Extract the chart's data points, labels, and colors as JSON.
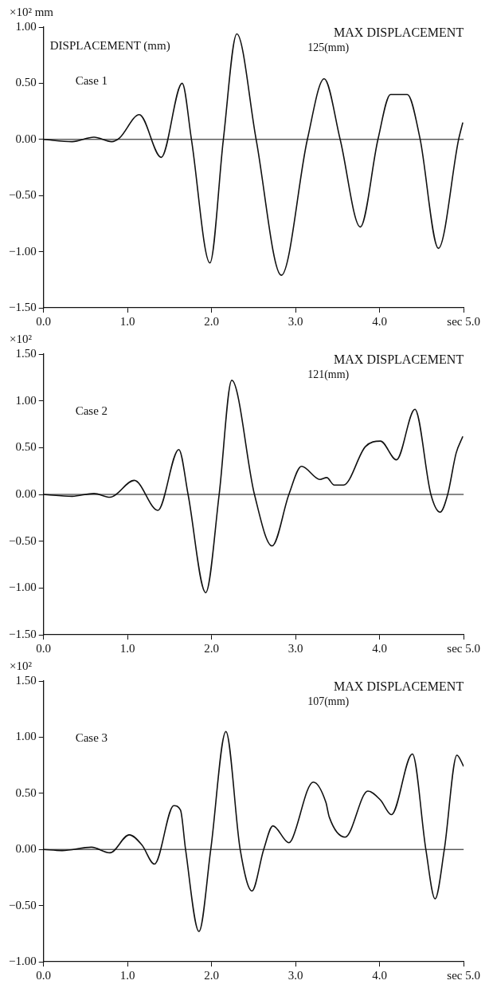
{
  "chart_data": [
    {
      "type": "line",
      "title": "DISPLACEMENT (mm)",
      "subtitle": "Case 1",
      "ylabel": "×10² mm",
      "annotations": [
        "MAX DISPLACEMENT",
        "125(mm)"
      ],
      "marker": "none",
      "grid": false,
      "legend": false,
      "xlim": [
        0,
        5
      ],
      "xticks": [
        {
          "value": 0,
          "label": "0.0"
        },
        {
          "value": 1,
          "label": "1.0"
        },
        {
          "value": 2,
          "label": "2.0"
        },
        {
          "value": 3,
          "label": "3.0"
        },
        {
          "value": 4,
          "label": "4.0"
        },
        {
          "value": 5,
          "label": "sec 5.0"
        }
      ],
      "ylim": [
        -1.5,
        1.0
      ],
      "yticks": [
        {
          "value": -1.5,
          "label": "−1.50"
        },
        {
          "value": -1,
          "label": "−1.00"
        },
        {
          "value": -0.5,
          "label": "−0.50"
        },
        {
          "value": 0,
          "label": "0.00"
        },
        {
          "value": 0.5,
          "label": "0.50"
        },
        {
          "value": 1,
          "label": "1.00"
        }
      ],
      "ref_lines": [
        {
          "axis": "y",
          "value": 0,
          "color": "#111111"
        }
      ],
      "series": [
        {
          "color": "#111111",
          "x": [
            0,
            0.34,
            0.6,
            0.81,
            0.9,
            1.14,
            1.4,
            1.65,
            1.76,
            1.98,
            2.14,
            2.3,
            2.53,
            2.83,
            3.14,
            3.34,
            3.53,
            3.77,
            3.98,
            4.13,
            4.33,
            4.48,
            4.7,
            4.94,
            4.99
          ],
          "values": [
            0,
            -0.02,
            0.02,
            -0.02,
            0.01,
            0.22,
            -0.16,
            0.5,
            0,
            -1.1,
            0,
            0.94,
            0,
            -1.21,
            0,
            0.54,
            0,
            -0.78,
            0,
            0.4,
            0.4,
            0.01,
            -0.97,
            0,
            0.15
          ]
        }
      ]
    },
    {
      "type": "line",
      "subtitle": "Case 2",
      "ylabel": "×10²",
      "annotations": [
        "MAX DISPLACEMENT",
        "121(mm)"
      ],
      "marker": "none",
      "grid": false,
      "legend": false,
      "xlim": [
        0,
        5
      ],
      "xticks": [
        {
          "value": 0,
          "label": "0.0"
        },
        {
          "value": 1,
          "label": "1.0"
        },
        {
          "value": 2,
          "label": "2.0"
        },
        {
          "value": 3,
          "label": "3.0"
        },
        {
          "value": 4,
          "label": "4.0"
        },
        {
          "value": 5,
          "label": "sec 5.0"
        }
      ],
      "ylim": [
        -1.5,
        1.5
      ],
      "yticks": [
        {
          "value": -1.5,
          "label": "−1.50"
        },
        {
          "value": -1,
          "label": "−1.00"
        },
        {
          "value": -0.5,
          "label": "−0.50"
        },
        {
          "value": 0,
          "label": "0.00"
        },
        {
          "value": 0.5,
          "label": "0.50"
        },
        {
          "value": 1,
          "label": "1.00"
        },
        {
          "value": 1.5,
          "label": "1.50"
        }
      ],
      "ref_lines": [
        {
          "axis": "y",
          "value": 0,
          "color": "#111111"
        }
      ],
      "series": [
        {
          "color": "#111111",
          "x": [
            0,
            0.34,
            0.6,
            0.79,
            1.08,
            1.36,
            1.61,
            1.72,
            1.93,
            2.09,
            2.24,
            2.51,
            2.72,
            2.92,
            3.07,
            3.29,
            3.37,
            3.46,
            3.57,
            3.83,
            4.01,
            4.2,
            4.42,
            4.61,
            4.72,
            4.81,
            4.91,
            4.99
          ],
          "values": [
            0,
            -0.02,
            0.01,
            -0.03,
            0.15,
            -0.17,
            0.48,
            0,
            -1.05,
            0,
            1.22,
            0,
            -0.55,
            0,
            0.3,
            0.16,
            0.18,
            0.1,
            0.1,
            0.51,
            0.57,
            0.37,
            0.91,
            0,
            -0.19,
            0,
            0.44,
            0.62
          ]
        }
      ]
    },
    {
      "type": "line",
      "subtitle": "Case 3",
      "ylabel": "×10²",
      "annotations": [
        "MAX DISPLACEMENT",
        "107(mm)"
      ],
      "marker": "none",
      "grid": false,
      "legend": false,
      "xlim": [
        0,
        5
      ],
      "xticks": [
        {
          "value": 0,
          "label": "0.0"
        },
        {
          "value": 1,
          "label": "1.0"
        },
        {
          "value": 2,
          "label": "2.0"
        },
        {
          "value": 3,
          "label": "3.0"
        },
        {
          "value": 4,
          "label": "4.0"
        },
        {
          "value": 5,
          "label": "sec 5.0"
        }
      ],
      "ylim": [
        -1.0,
        1.5
      ],
      "yticks": [
        {
          "value": -1,
          "label": "−1.00"
        },
        {
          "value": -0.5,
          "label": "−0.50"
        },
        {
          "value": 0,
          "label": "0.00"
        },
        {
          "value": 0.5,
          "label": "0.50"
        },
        {
          "value": 1,
          "label": "1.00"
        },
        {
          "value": 1.5,
          "label": "1.50"
        }
      ],
      "ref_lines": [
        {
          "axis": "y",
          "value": 0,
          "color": "#111111"
        }
      ],
      "series": [
        {
          "color": "#111111",
          "x": [
            0,
            0.22,
            0.57,
            0.79,
            1.02,
            1.17,
            1.32,
            1.55,
            1.63,
            1.69,
            1.85,
            1.99,
            2.17,
            2.34,
            2.48,
            2.62,
            2.73,
            2.92,
            2.95,
            3.21,
            3.36,
            3.4,
            3.59,
            3.86,
            4.01,
            4.14,
            4.39,
            4.55,
            4.66,
            4.77,
            4.92,
            5.0
          ],
          "values": [
            0,
            -0.01,
            0.02,
            -0.03,
            0.13,
            0.04,
            -0.13,
            0.39,
            0.35,
            0,
            -0.73,
            0,
            1.05,
            0,
            -0.37,
            0,
            0.21,
            0.06,
            0.08,
            0.6,
            0.42,
            0.29,
            0.11,
            0.52,
            0.44,
            0.31,
            0.85,
            0,
            -0.44,
            0,
            0.84,
            0.74
          ]
        }
      ]
    }
  ]
}
